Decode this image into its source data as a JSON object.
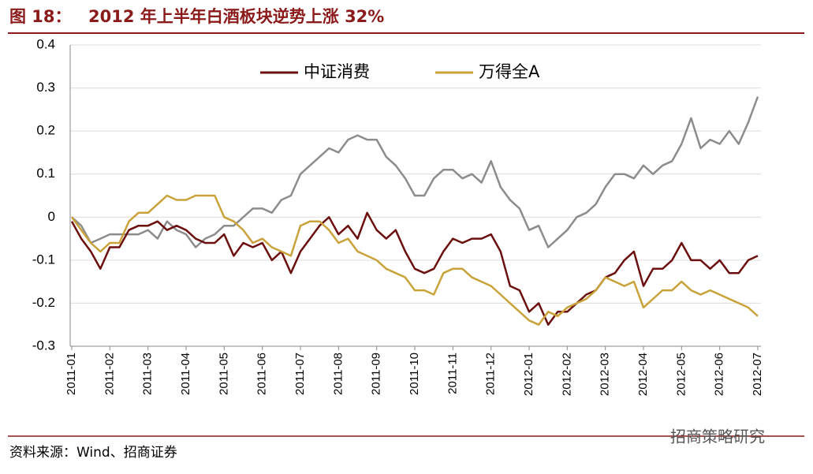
{
  "header": {
    "label": "图 18：",
    "title": "2012 年上半年白酒板块逆势上涨 32%"
  },
  "footer": {
    "source": "资料来源：Wind、招商证券",
    "watermark": "招商策略研究"
  },
  "chart_data": {
    "type": "line",
    "categories": [
      "2011-01",
      null,
      null,
      null,
      "2011-02",
      null,
      null,
      null,
      "2011-03",
      null,
      null,
      null,
      "2011-04",
      null,
      null,
      null,
      "2011-05",
      null,
      null,
      null,
      "2011-06",
      null,
      null,
      null,
      "2011-07",
      null,
      null,
      null,
      "2011-08",
      null,
      null,
      null,
      "2011-09",
      null,
      null,
      null,
      "2011-10",
      null,
      null,
      null,
      "2011-11",
      null,
      null,
      null,
      "2011-12",
      null,
      null,
      null,
      "2012-01",
      null,
      null,
      null,
      "2012-02",
      null,
      null,
      null,
      "2012-03",
      null,
      null,
      null,
      "2012-04",
      null,
      null,
      null,
      "2012-05",
      null,
      null,
      null,
      "2012-06",
      null,
      null,
      null,
      "2012-07"
    ],
    "series": [
      {
        "color": "#8c8c8c",
        "values": [
          0,
          -0.02,
          -0.06,
          -0.05,
          -0.04,
          -0.04,
          -0.04,
          -0.04,
          -0.03,
          -0.05,
          -0.01,
          -0.03,
          -0.04,
          -0.07,
          -0.05,
          -0.04,
          -0.02,
          -0.02,
          0,
          0.02,
          0.02,
          0.01,
          0.04,
          0.05,
          0.1,
          0.12,
          0.14,
          0.16,
          0.15,
          0.18,
          0.19,
          0.18,
          0.18,
          0.14,
          0.12,
          0.09,
          0.05,
          0.05,
          0.09,
          0.11,
          0.11,
          0.09,
          0.1,
          0.08,
          0.13,
          0.07,
          0.04,
          0.02,
          -0.03,
          -0.02,
          -0.07,
          -0.05,
          -0.03,
          0,
          0.01,
          0.03,
          0.07,
          0.1,
          0.1,
          0.09,
          0.12,
          0.1,
          0.12,
          0.13,
          0.17,
          0.23,
          0.16,
          0.18,
          0.17,
          0.2,
          0.17,
          0.22,
          0.28
        ]
      },
      {
        "name": "中证消费",
        "color": "#6b0f0f",
        "values": [
          -0.01,
          -0.05,
          -0.08,
          -0.12,
          -0.07,
          -0.07,
          -0.03,
          -0.02,
          -0.02,
          -0.01,
          -0.03,
          -0.02,
          -0.03,
          -0.05,
          -0.06,
          -0.06,
          -0.04,
          -0.09,
          -0.06,
          -0.07,
          -0.06,
          -0.1,
          -0.08,
          -0.13,
          -0.08,
          -0.05,
          -0.02,
          0,
          -0.04,
          -0.02,
          -0.05,
          0.01,
          -0.03,
          -0.05,
          -0.03,
          -0.08,
          -0.12,
          -0.13,
          -0.12,
          -0.08,
          -0.05,
          -0.06,
          -0.05,
          -0.05,
          -0.04,
          -0.08,
          -0.16,
          -0.17,
          -0.22,
          -0.2,
          -0.25,
          -0.22,
          -0.22,
          -0.2,
          -0.18,
          -0.17,
          -0.14,
          -0.13,
          -0.1,
          -0.08,
          -0.16,
          -0.12,
          -0.12,
          -0.1,
          -0.06,
          -0.1,
          -0.1,
          -0.12,
          -0.1,
          -0.13,
          -0.13,
          -0.1,
          -0.09
        ]
      },
      {
        "name": "万得全A",
        "color": "#c9a23a",
        "values": [
          0,
          -0.03,
          -0.06,
          -0.08,
          -0.06,
          -0.06,
          -0.01,
          0.01,
          0.01,
          0.03,
          0.05,
          0.04,
          0.04,
          0.05,
          0.05,
          0.05,
          0,
          -0.01,
          -0.03,
          -0.06,
          -0.05,
          -0.07,
          -0.08,
          -0.09,
          -0.02,
          -0.01,
          -0.01,
          -0.03,
          -0.06,
          -0.05,
          -0.08,
          -0.09,
          -0.1,
          -0.12,
          -0.13,
          -0.14,
          -0.17,
          -0.17,
          -0.18,
          -0.13,
          -0.12,
          -0.12,
          -0.14,
          -0.15,
          -0.16,
          -0.18,
          -0.2,
          -0.22,
          -0.24,
          -0.25,
          -0.22,
          -0.23,
          -0.21,
          -0.2,
          -0.19,
          -0.17,
          -0.14,
          -0.15,
          -0.16,
          -0.15,
          -0.21,
          -0.19,
          -0.17,
          -0.17,
          -0.15,
          -0.17,
          -0.18,
          -0.17,
          -0.18,
          -0.19,
          -0.2,
          -0.21,
          -0.23
        ]
      }
    ],
    "ylim": [
      -0.3,
      0.4
    ],
    "yticks": [
      -0.3,
      -0.2,
      -0.1,
      0,
      0.1,
      0.2,
      0.3,
      0.4
    ],
    "grid": true,
    "legend": "top"
  }
}
